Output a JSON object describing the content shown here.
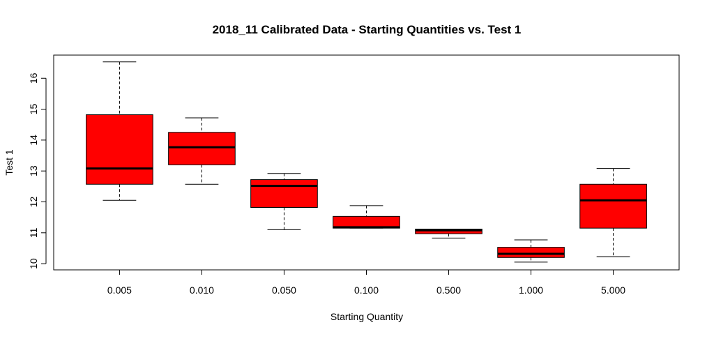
{
  "chart_data": {
    "type": "boxplot",
    "title": "2018_11 Calibrated Data - Starting Quantities vs. Test 1",
    "xlabel": "Starting Quantity",
    "ylabel": "Test 1",
    "ylim": [
      9.8,
      16.75
    ],
    "yticks": [
      10,
      11,
      12,
      13,
      14,
      15,
      16
    ],
    "ytick_labels": [
      "10",
      "11",
      "12",
      "13",
      "14",
      "15",
      "16"
    ],
    "categories": [
      "0.005",
      "0.010",
      "0.050",
      "0.100",
      "0.500",
      "1.000",
      "5.000"
    ],
    "boxes": [
      {
        "min": 12.05,
        "q1": 12.57,
        "median": 13.08,
        "q3": 14.82,
        "max": 16.53
      },
      {
        "min": 12.57,
        "q1": 13.2,
        "median": 13.77,
        "q3": 14.25,
        "max": 14.72
      },
      {
        "min": 11.1,
        "q1": 11.82,
        "median": 12.52,
        "q3": 12.72,
        "max": 12.92
      },
      {
        "min": 11.15,
        "q1": 11.15,
        "median": 11.18,
        "q3": 11.53,
        "max": 11.88
      },
      {
        "min": 10.83,
        "q1": 10.97,
        "median": 11.08,
        "q3": 11.12,
        "max": 11.12
      },
      {
        "min": 10.05,
        "q1": 10.2,
        "median": 10.32,
        "q3": 10.53,
        "max": 10.77
      },
      {
        "min": 10.23,
        "q1": 11.15,
        "median": 12.05,
        "q3": 12.57,
        "max": 13.08
      }
    ],
    "box_color": "#ff0000",
    "grid": false,
    "legend": "none"
  }
}
